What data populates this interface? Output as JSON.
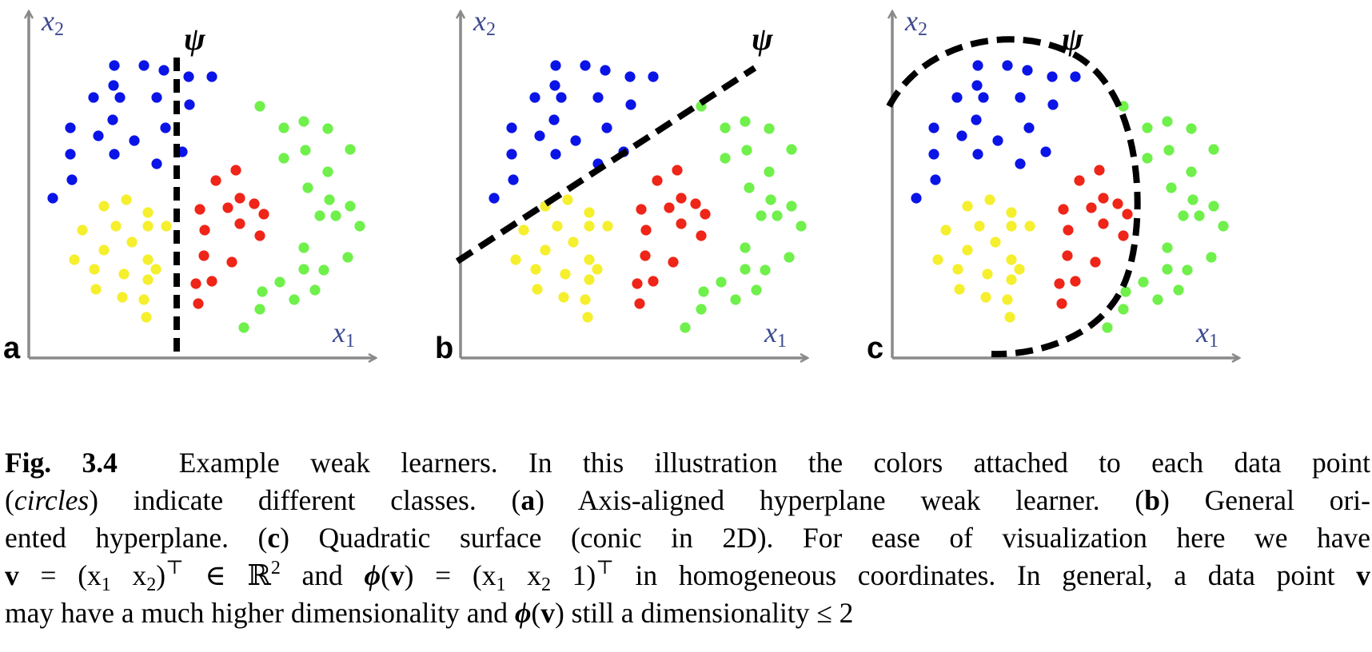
{
  "panels": [
    {
      "id": "a",
      "label": "a",
      "x1_label": "x",
      "x1_sub": "1",
      "x2_label": "x",
      "x2_sub": "2",
      "psi": "ψ"
    },
    {
      "id": "b",
      "label": "b",
      "x1_label": "x",
      "x1_sub": "1",
      "x2_label": "x",
      "x2_sub": "2",
      "psi": "ψ"
    },
    {
      "id": "c",
      "label": "c",
      "x1_label": "x",
      "x1_sub": "1",
      "x2_label": "x",
      "x2_sub": "2",
      "psi": "ψ"
    }
  ],
  "colors": {
    "blue": "#0a14e6",
    "green": "#6ff04a",
    "red": "#ee2518",
    "yellow": "#f5ef2d",
    "axis": "#8a8a8a",
    "axis_label": "#3d4a8f",
    "boundary": "#000000"
  },
  "caption": {
    "fig_label": "Fig. 3.4",
    "t1": "Example weak learners. In this illustration the colors attached to each data point",
    "t2a": "(",
    "t2_circles": "circles",
    "t2b": ") indicate different classes. (",
    "t2_a": "a",
    "t2c": ") Axis-aligned hyperplane weak learner. (",
    "t2_b": "b",
    "t2d": ") General ori-",
    "t3a": "ented hyperplane. (",
    "t3_c": "c",
    "t3b": ") Quadratic surface (conic in 2D). For ease of visualization here we have",
    "t4_v": "v",
    "t4a": " = (x",
    "t4_s1": "1",
    "t4b": " x",
    "t4_s2": "2",
    "t4c": ")",
    "t4_T1": "⊤",
    "t4d": " ∈ ℝ",
    "t4_sq": "2",
    "t4e": " and ",
    "t4_phi": "ϕ",
    "t4f": "(",
    "t4_v2": "v",
    "t4g": ") = (x",
    "t4_s3": "1",
    "t4h": " x",
    "t4_s4": "2",
    "t4i": " 1)",
    "t4_T2": "⊤",
    "t4j": " in homogeneous coordinates. In general, a data point ",
    "t4_v3": "v",
    "t5a": "may have a much higher dimensionality and ",
    "t5_phi": "ϕ",
    "t5b": "(",
    "t5_v": "v",
    "t5c": ") still a dimensionality ≤ 2"
  }
}
